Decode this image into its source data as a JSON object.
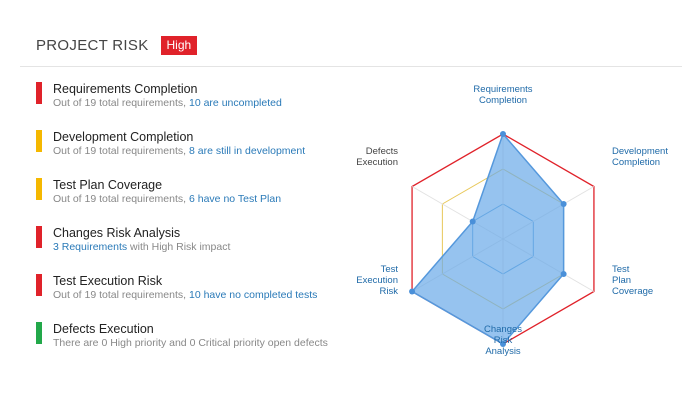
{
  "header": {
    "title": "PROJECT RISK",
    "badge": "High"
  },
  "items": [
    {
      "title": "Requirements Completion",
      "desc_prefix": "Out of 19 total requirements, ",
      "desc_link": "10 are uncompleted",
      "desc_suffix": "",
      "status": "red"
    },
    {
      "title": "Development Completion",
      "desc_prefix": "Out of 19 total requirements, ",
      "desc_link": "8 are still in development",
      "desc_suffix": "",
      "status": "yellow"
    },
    {
      "title": "Test Plan Coverage",
      "desc_prefix": "Out of 19 total requirements, ",
      "desc_link": "6 have no Test Plan",
      "desc_suffix": "",
      "status": "yellow"
    },
    {
      "title": "Changes Risk Analysis",
      "desc_prefix": "",
      "desc_link": "3 Requirements",
      "desc_suffix": " with High Risk impact",
      "status": "red"
    },
    {
      "title": "Test Execution Risk",
      "desc_prefix": "Out of 19 total requirements, ",
      "desc_link": "10 have no completed tests",
      "desc_suffix": "",
      "status": "red"
    },
    {
      "title": "Defects Execution",
      "desc_prefix": "There are 0 High priority and 0 Critical priority open defects",
      "desc_link": "",
      "desc_suffix": "",
      "status": "green"
    }
  ],
  "colors": {
    "red": "#e0222a",
    "yellow": "#f5b800",
    "green": "#22a84a",
    "fill": "#6aaae8",
    "link": "#2a7ab8"
  },
  "radar": {
    "axes": [
      {
        "label": [
          "Requirements",
          "Completion"
        ],
        "value": 1.0
      },
      {
        "label": [
          "Development",
          "Completion"
        ],
        "value": 0.6667
      },
      {
        "label": [
          "Test",
          "Plan",
          "Coverage"
        ],
        "value": 0.6667
      },
      {
        "label": [
          "Changes",
          "Risk",
          "Analysis"
        ],
        "value": 1.0
      },
      {
        "label": [
          "Test",
          "Execution",
          "Risk"
        ],
        "value": 1.0
      },
      {
        "label": [
          "Defects",
          "Execution"
        ],
        "value": 0.3333
      }
    ],
    "levels": 3
  }
}
